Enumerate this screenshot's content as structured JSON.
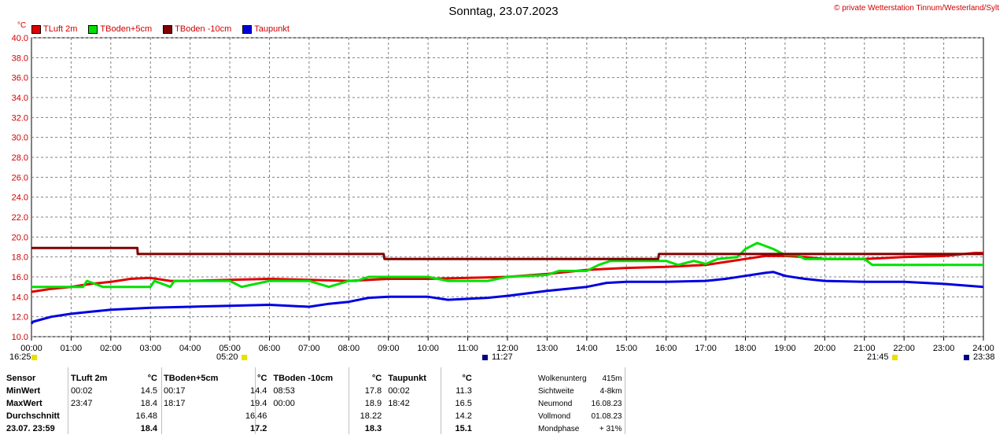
{
  "header": {
    "title": "Sonntag, 23.07.2023",
    "copyright": "© private Wetterstation Tinnum/Westerland/Sylt",
    "y_unit": "°C"
  },
  "chart_data": {
    "type": "line",
    "ylim": [
      10,
      40
    ],
    "y_ticks": [
      "10.0",
      "12.0",
      "14.0",
      "16.0",
      "18.0",
      "20.0",
      "22.0",
      "24.0",
      "26.0",
      "28.0",
      "30.0",
      "32.0",
      "34.0",
      "36.0",
      "38.0",
      "40.0"
    ],
    "x_ticks": [
      "00:00",
      "01:00",
      "02:00",
      "03:00",
      "04:00",
      "05:00",
      "06:00",
      "07:00",
      "08:00",
      "09:00",
      "10:00",
      "11:00",
      "12:00",
      "13:00",
      "14:00",
      "15:00",
      "16:00",
      "17:00",
      "18:00",
      "19:00",
      "20:00",
      "21:00",
      "22:00",
      "23:00",
      "24:00"
    ],
    "x_range_hours": [
      0,
      24
    ],
    "grid": true,
    "legend_position": "top-left",
    "series": [
      {
        "name": "TLuft 2m",
        "color": "#e00000",
        "x": [
          0,
          0.5,
          1,
          1.5,
          2,
          2.5,
          3,
          3.5,
          4,
          5,
          6,
          7,
          8,
          9,
          10,
          11,
          12,
          13,
          14,
          15,
          16,
          17,
          17.5,
          18,
          18.5,
          19,
          19.5,
          20,
          21,
          22,
          23,
          23.78,
          24
        ],
        "y": [
          14.5,
          14.8,
          15.0,
          15.3,
          15.5,
          15.8,
          15.9,
          15.6,
          15.6,
          15.7,
          15.8,
          15.7,
          15.6,
          15.8,
          15.8,
          15.9,
          16.0,
          16.3,
          16.7,
          16.9,
          17.0,
          17.2,
          17.5,
          17.8,
          18.1,
          18.1,
          18.0,
          17.8,
          17.8,
          18.0,
          18.1,
          18.4,
          18.4
        ]
      },
      {
        "name": "TBoden+5cm",
        "color": "#00e000",
        "x": [
          0,
          1.3,
          1.4,
          1.8,
          2.0,
          3.0,
          3.1,
          3.5,
          3.6,
          4.0,
          5.0,
          5.3,
          6.0,
          7.0,
          7.5,
          8.0,
          8.2,
          8.5,
          9.0,
          10.0,
          10.5,
          11.0,
          11.5,
          12.0,
          12.5,
          13.0,
          13.3,
          14.0,
          14.3,
          14.6,
          15.0,
          15.5,
          16.0,
          16.3,
          16.7,
          17.0,
          17.3,
          17.8,
          18.0,
          18.3,
          18.7,
          19.0,
          19.3,
          19.5,
          20.0,
          21.0,
          21.2,
          22.0,
          23.0,
          24.0
        ],
        "y": [
          15.0,
          15.0,
          15.6,
          15.0,
          15.0,
          15.0,
          15.6,
          15.0,
          15.6,
          15.6,
          15.6,
          15.0,
          15.6,
          15.6,
          15.0,
          15.6,
          15.6,
          16.0,
          16.0,
          16.0,
          15.6,
          15.6,
          15.6,
          16.0,
          16.1,
          16.2,
          16.6,
          16.6,
          17.2,
          17.6,
          17.6,
          17.6,
          17.6,
          17.2,
          17.6,
          17.3,
          17.8,
          18.0,
          18.8,
          19.4,
          18.8,
          18.2,
          18.2,
          17.8,
          17.8,
          17.8,
          17.2,
          17.2,
          17.2,
          17.2
        ]
      },
      {
        "name": "TBoden -10cm",
        "color": "#800000",
        "x": [
          0,
          2.67,
          2.68,
          8.88,
          8.9,
          15.8,
          15.82,
          24
        ],
        "y": [
          18.9,
          18.9,
          18.3,
          18.3,
          17.8,
          17.8,
          18.3,
          18.3
        ]
      },
      {
        "name": "Taupunkt",
        "color": "#0000e0",
        "x": [
          0,
          0.04,
          0.5,
          1,
          1.5,
          2,
          3,
          4,
          5,
          6,
          7,
          7.5,
          8,
          8.5,
          9,
          10,
          10.5,
          11,
          11.5,
          12,
          13,
          14,
          14.5,
          15,
          16,
          17,
          17.5,
          18,
          18.5,
          18.7,
          19,
          19.5,
          20,
          21,
          22,
          23,
          24
        ],
        "y": [
          11.3,
          11.5,
          12.0,
          12.3,
          12.5,
          12.7,
          12.9,
          13.0,
          13.1,
          13.2,
          13.0,
          13.3,
          13.5,
          13.9,
          14.0,
          14.0,
          13.7,
          13.8,
          13.9,
          14.1,
          14.6,
          15.0,
          15.4,
          15.5,
          15.5,
          15.6,
          15.8,
          16.1,
          16.4,
          16.5,
          16.1,
          15.8,
          15.6,
          15.5,
          15.5,
          15.3,
          15.0
        ]
      }
    ]
  },
  "events": [
    {
      "label": "16:25",
      "icon": "sunrise-marker"
    },
    {
      "label": "05:20",
      "icon": "moon-rise-marker"
    },
    {
      "label": "11:27",
      "icon": "moon-transit-marker"
    },
    {
      "label": "21:45",
      "icon": "sunset-marker"
    },
    {
      "label": "23:38",
      "icon": "moonset-marker"
    }
  ],
  "stats": {
    "header": {
      "sensor": "Sensor",
      "tluft": "TLuft 2m",
      "tboden5": "TBoden+5cm",
      "tboden10": "TBoden -10cm",
      "taupunkt": "Taupunkt",
      "unit": "°C"
    },
    "rows": [
      {
        "label": "MinWert",
        "c": [
          "00:02",
          "14.5",
          "00:17",
          "14.4",
          "08:53",
          "17.8",
          "00:02",
          "11.3"
        ]
      },
      {
        "label": "MaxWert",
        "c": [
          "23:47",
          "18.4",
          "18:17",
          "19.4",
          "00:00",
          "18.9",
          "18:42",
          "16.5"
        ]
      },
      {
        "label": "Durchschnitt",
        "c": [
          "",
          "16.48",
          "",
          "16.46",
          "",
          "18.22",
          "",
          "14.2"
        ]
      },
      {
        "label": "23.07.  23:59",
        "c": [
          "",
          "18.4",
          "",
          "17.2",
          "",
          "18.3",
          "",
          "15.1"
        ]
      }
    ]
  },
  "info": [
    {
      "label": "Wolkenunterg",
      "value": "415m"
    },
    {
      "label": "Sichtweite",
      "value": "4-8km"
    },
    {
      "label": "Neumond",
      "value": "16.08.23"
    },
    {
      "label": "Vollmond",
      "value": "01.08.23"
    },
    {
      "label": "Mondphase",
      "value": "+ 31%"
    }
  ]
}
